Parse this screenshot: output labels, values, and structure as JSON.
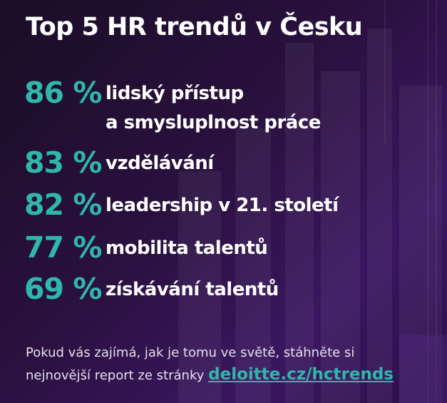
{
  "title": "Top 5 HR trendů v Česku",
  "items": [
    {
      "percent": "86 %",
      "label": [
        "lidský přístup",
        "a smysluplnost práce"
      ]
    },
    {
      "percent": "83 %",
      "label": [
        "vzdělávání"
      ]
    },
    {
      "percent": "82 %",
      "label": [
        "leadership v 21. století"
      ]
    },
    {
      "percent": "77 %",
      "label": [
        "mobilita talentů"
      ]
    },
    {
      "percent": "69 %",
      "label": [
        "získávání talentů"
      ]
    }
  ],
  "footer": {
    "line1": "Pokud vás zajímá, jak je tomu ve světě, stáhněte si",
    "line2": "nejnovější report ze stránky",
    "link": "deloitte.cz/hctrends"
  }
}
